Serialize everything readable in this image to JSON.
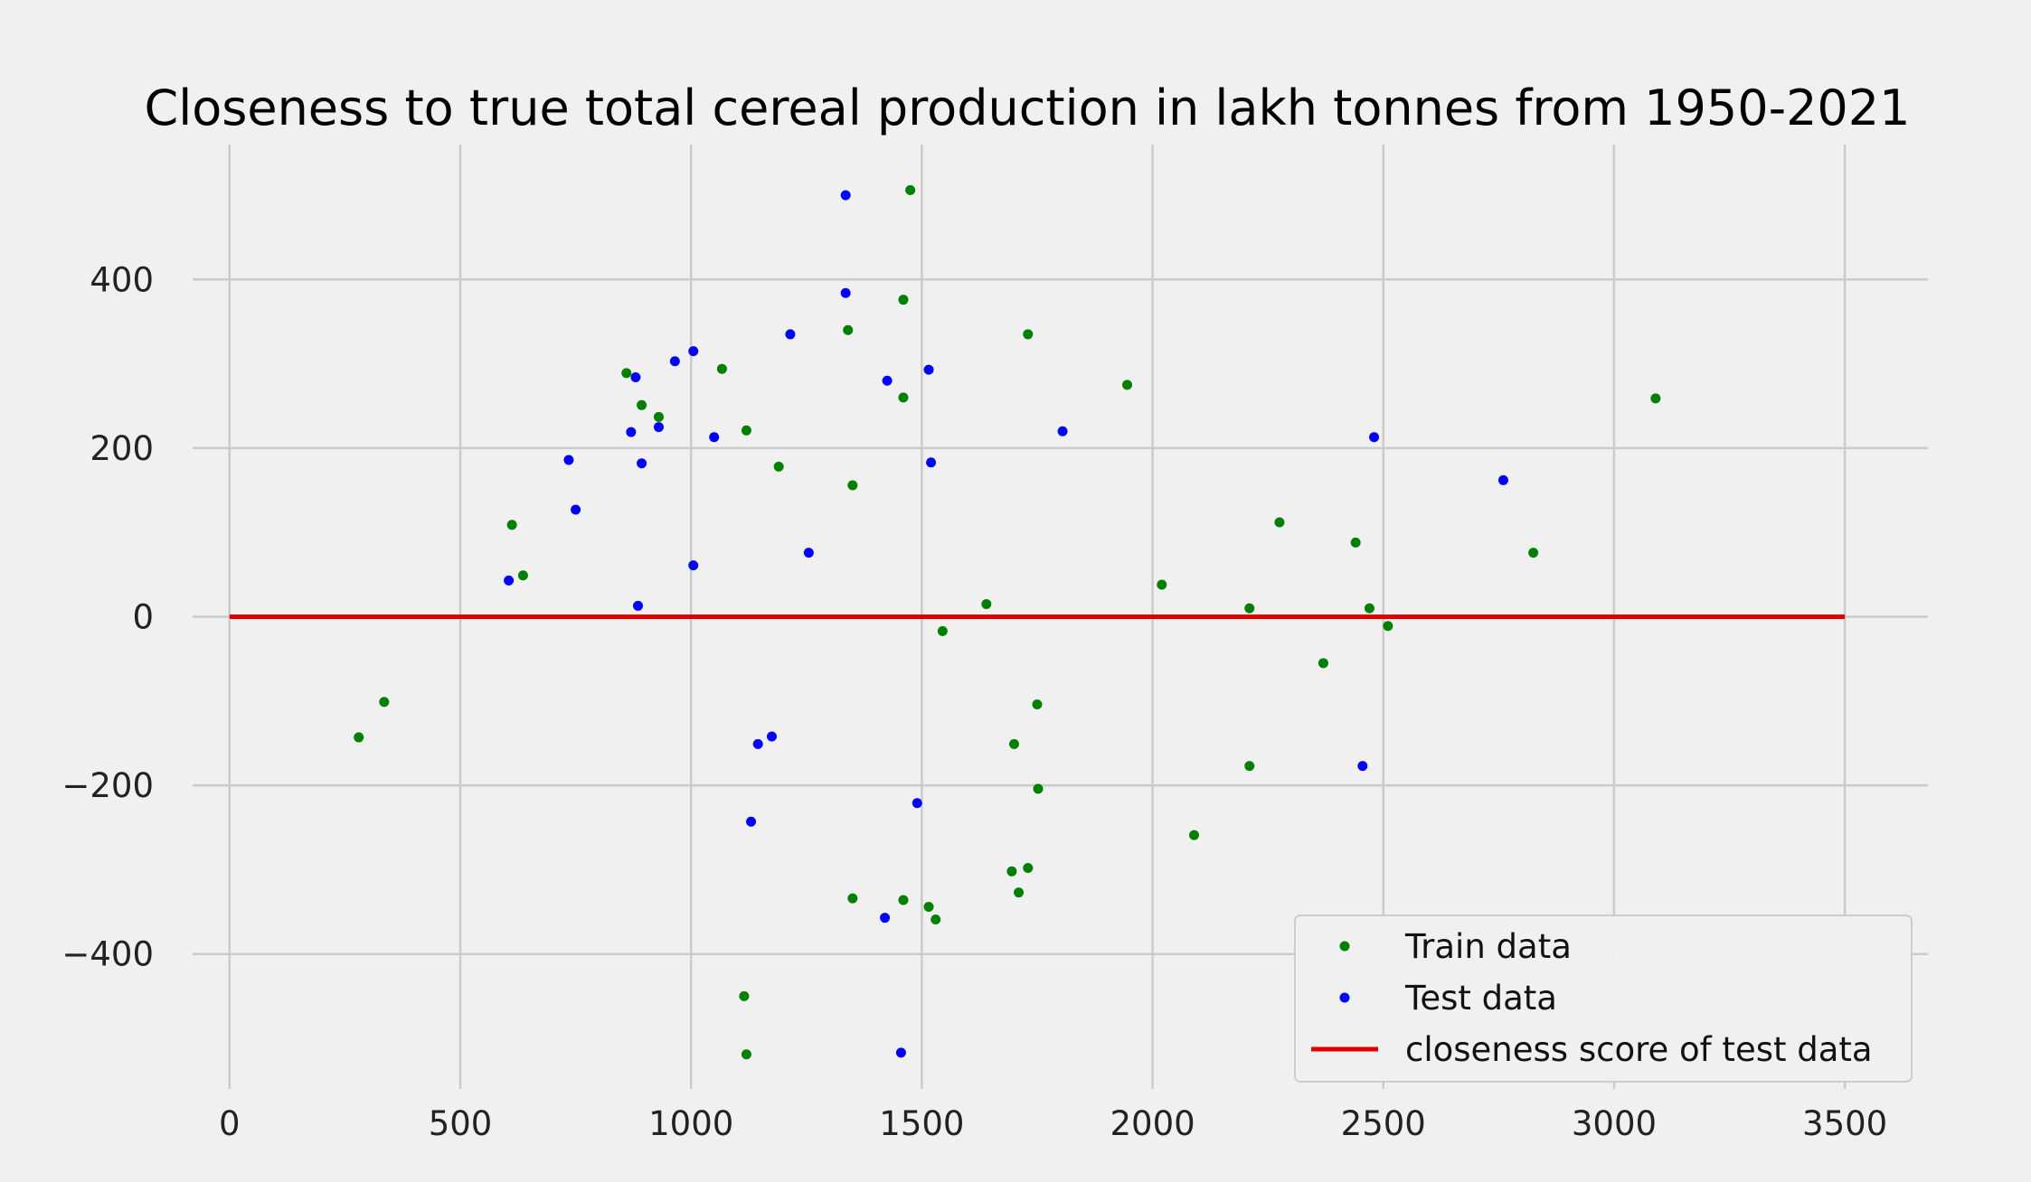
{
  "chart_data": {
    "type": "scatter",
    "title": "Closeness to true total cereal production in lakh tonnes from 1950-2021",
    "xlabel": "",
    "ylabel": "",
    "xlim": [
      -80,
      3680
    ],
    "ylim": [
      -560,
      560
    ],
    "xticks": [
      0,
      500,
      1000,
      1500,
      2000,
      2500,
      3000,
      3500
    ],
    "yticks": [
      -400,
      -200,
      0,
      200,
      400
    ],
    "ytick_labels": [
      "−400",
      "−200",
      "0",
      "200",
      "400"
    ],
    "grid": true,
    "legend": "bottom-right",
    "series": [
      {
        "name": "Train data",
        "color": "#008000",
        "points": [
          [
            280,
            -143
          ],
          [
            335,
            -101
          ],
          [
            612,
            109
          ],
          [
            636,
            49
          ],
          [
            860,
            289
          ],
          [
            893,
            251
          ],
          [
            930,
            237
          ],
          [
            1067,
            294
          ],
          [
            1120,
            221
          ],
          [
            1190,
            178
          ],
          [
            1340,
            340
          ],
          [
            1350,
            156
          ],
          [
            1460,
            376
          ],
          [
            1460,
            260
          ],
          [
            1475,
            506
          ],
          [
            1730,
            335
          ],
          [
            1945,
            275
          ],
          [
            1115,
            -450
          ],
          [
            1120,
            -519
          ],
          [
            1350,
            -334
          ],
          [
            1460,
            -336
          ],
          [
            1515,
            -344
          ],
          [
            1530,
            -359
          ],
          [
            1545,
            -17
          ],
          [
            1640,
            15
          ],
          [
            1695,
            -302
          ],
          [
            1700,
            -151
          ],
          [
            1710,
            -327
          ],
          [
            1730,
            -298
          ],
          [
            1750,
            -104
          ],
          [
            1752,
            -204
          ],
          [
            2020,
            38
          ],
          [
            2090,
            -259
          ],
          [
            2210,
            10
          ],
          [
            2210,
            -177
          ],
          [
            2275,
            112
          ],
          [
            2370,
            -55
          ],
          [
            2440,
            88
          ],
          [
            2470,
            10
          ],
          [
            2510,
            -11
          ],
          [
            2825,
            76
          ],
          [
            3090,
            259
          ]
        ]
      },
      {
        "name": "Test data",
        "color": "#0000ff",
        "points": [
          [
            605,
            43
          ],
          [
            735,
            186
          ],
          [
            750,
            127
          ],
          [
            870,
            219
          ],
          [
            880,
            284
          ],
          [
            885,
            13
          ],
          [
            893,
            182
          ],
          [
            930,
            225
          ],
          [
            965,
            303
          ],
          [
            1005,
            315
          ],
          [
            1005,
            61
          ],
          [
            1050,
            213
          ],
          [
            1215,
            335
          ],
          [
            1255,
            76
          ],
          [
            1335,
            500
          ],
          [
            1335,
            384
          ],
          [
            1425,
            280
          ],
          [
            1515,
            293
          ],
          [
            1520,
            183
          ],
          [
            1805,
            220
          ],
          [
            1130,
            -243
          ],
          [
            1145,
            -151
          ],
          [
            1175,
            -142
          ],
          [
            1420,
            -357
          ],
          [
            1455,
            -517
          ],
          [
            1490,
            -221
          ],
          [
            2480,
            213
          ],
          [
            2455,
            -177
          ],
          [
            2760,
            162
          ]
        ]
      },
      {
        "name": "closeness score of test data",
        "color": "#e00000",
        "type": "line",
        "points": [
          [
            0,
            0
          ],
          [
            3500,
            0
          ]
        ]
      }
    ]
  }
}
